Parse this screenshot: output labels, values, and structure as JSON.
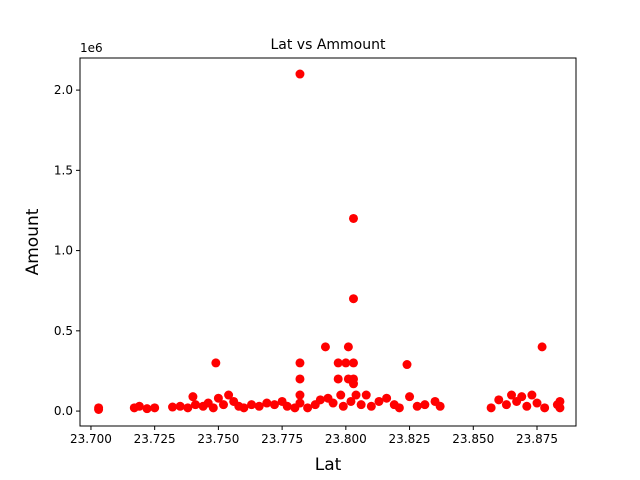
{
  "chart_data": {
    "type": "scatter",
    "title": "Lat vs Ammount",
    "x_label": "Lat",
    "y_label": "Amount",
    "y_offset_label": "1e6",
    "color": "#ff0000",
    "xlim": [
      23.6957,
      23.8903
    ],
    "ylim": [
      -93000,
      2200000
    ],
    "xticks": [
      {
        "value": 23.7,
        "label": "23.700"
      },
      {
        "value": 23.725,
        "label": "23.725"
      },
      {
        "value": 23.75,
        "label": "23.750"
      },
      {
        "value": 23.775,
        "label": "23.775"
      },
      {
        "value": 23.8,
        "label": "23.800"
      },
      {
        "value": 23.825,
        "label": "23.825"
      },
      {
        "value": 23.85,
        "label": "23.850"
      },
      {
        "value": 23.875,
        "label": "23.875"
      }
    ],
    "yticks": [
      {
        "value": 0,
        "label": "0.0"
      },
      {
        "value": 500000,
        "label": "0.5"
      },
      {
        "value": 1000000,
        "label": "1.0"
      },
      {
        "value": 1500000,
        "label": "1.5"
      },
      {
        "value": 2000000,
        "label": "2.0"
      }
    ],
    "x": [
      23.703,
      23.703,
      23.717,
      23.719,
      23.722,
      23.725,
      23.732,
      23.735,
      23.738,
      23.74,
      23.741,
      23.744,
      23.746,
      23.748,
      23.749,
      23.75,
      23.752,
      23.754,
      23.756,
      23.758,
      23.76,
      23.763,
      23.766,
      23.769,
      23.772,
      23.775,
      23.777,
      23.78,
      23.782,
      23.782,
      23.782,
      23.782,
      23.782,
      23.785,
      23.788,
      23.79,
      23.792,
      23.793,
      23.795,
      23.797,
      23.797,
      23.798,
      23.799,
      23.8,
      23.801,
      23.801,
      23.802,
      23.803,
      23.803,
      23.803,
      23.803,
      23.803,
      23.804,
      23.806,
      23.808,
      23.81,
      23.813,
      23.816,
      23.819,
      23.821,
      23.824,
      23.825,
      23.828,
      23.831,
      23.835,
      23.837,
      23.857,
      23.86,
      23.863,
      23.865,
      23.867,
      23.869,
      23.871,
      23.873,
      23.875,
      23.877,
      23.878,
      23.883,
      23.884,
      23.884
    ],
    "values": [
      10000,
      20000,
      20000,
      30000,
      15000,
      20000,
      25000,
      30000,
      20000,
      90000,
      40000,
      30000,
      50000,
      20000,
      300000,
      80000,
      40000,
      100000,
      60000,
      30000,
      20000,
      40000,
      30000,
      50000,
      40000,
      60000,
      30000,
      20000,
      2100000,
      300000,
      200000,
      100000,
      50000,
      20000,
      40000,
      70000,
      400000,
      80000,
      50000,
      300000,
      200000,
      100000,
      30000,
      300000,
      400000,
      200000,
      60000,
      1200000,
      700000,
      300000,
      200000,
      170000,
      100000,
      40000,
      100000,
      30000,
      60000,
      80000,
      40000,
      20000,
      290000,
      90000,
      30000,
      40000,
      60000,
      30000,
      20000,
      70000,
      40000,
      100000,
      60000,
      90000,
      30000,
      100000,
      50000,
      400000,
      20000,
      40000,
      60000,
      20000
    ]
  }
}
